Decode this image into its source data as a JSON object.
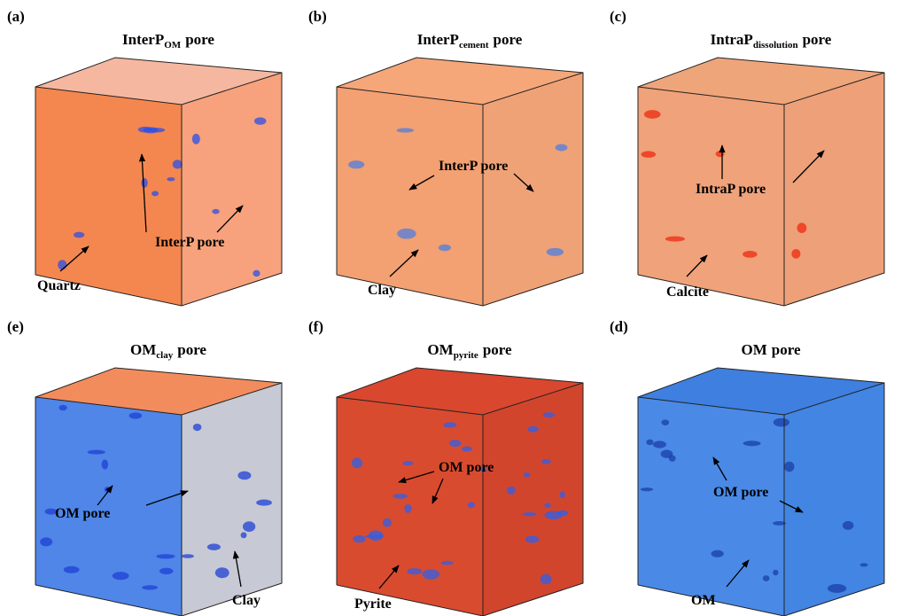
{
  "panels": [
    {
      "letter": "(a)",
      "title": {
        "base": "InterP",
        "subscript": "OM",
        "suffix": "pore"
      },
      "labels": [
        "InterP pore",
        "Quartz"
      ]
    },
    {
      "letter": "(b)",
      "title": {
        "base": "InterP",
        "subscript": "cement",
        "suffix": "pore"
      },
      "labels": [
        "InterP pore",
        "Clay"
      ]
    },
    {
      "letter": "(c)",
      "title": {
        "base": "IntraP",
        "subscript": "dissolution",
        "suffix": "pore"
      },
      "labels": [
        "IntraP pore",
        "Calcite"
      ]
    },
    {
      "letter": "(e)",
      "title": {
        "base": "OM",
        "subscript": "clay",
        "suffix": "pore"
      },
      "labels": [
        "OM pore",
        "Clay"
      ]
    },
    {
      "letter": "(f)",
      "title": {
        "base": "OM",
        "subscript": "pyrite",
        "suffix": "pore"
      },
      "labels": [
        "OM pore",
        "Pyrite"
      ]
    },
    {
      "letter": "(d)",
      "title": {
        "base": "OM",
        "suffix": "pore"
      },
      "labels": [
        "OM pore",
        "OM"
      ]
    }
  ]
}
